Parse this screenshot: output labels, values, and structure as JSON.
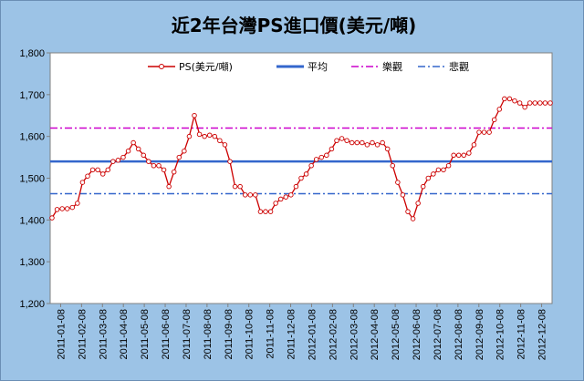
{
  "chart_data": {
    "type": "line",
    "title": "近2年台灣PS進口價(美元/噸)",
    "ylim": [
      1200,
      1800
    ],
    "y_ticks": [
      "1,200",
      "1,300",
      "1,400",
      "1,500",
      "1,600",
      "1,700",
      "1,800"
    ],
    "x_ticks": [
      "2011-01-08",
      "2011-02-08",
      "2011-03-08",
      "2011-04-08",
      "2011-05-08",
      "2011-06-08",
      "2011-07-08",
      "2011-08-08",
      "2011-09-08",
      "2011-10-08",
      "2011-11-08",
      "2011-12-08",
      "2012-01-08",
      "2012-02-08",
      "2012-03-08",
      "2012-04-08",
      "2012-05-08",
      "2012-06-08",
      "2012-07-08",
      "2012-08-08",
      "2012-09-08",
      "2012-10-08",
      "2012-11-08",
      "2012-12-08"
    ],
    "legend": {
      "series": "PS(美元/噸)",
      "average": "平均",
      "optimistic": "樂觀",
      "pessimistic": "悲觀"
    },
    "reference_lines": {
      "average": 1540,
      "optimistic": 1620,
      "pessimistic": 1463
    },
    "grid": false,
    "legend_position": "top",
    "colors": {
      "series": "#cc0000",
      "average": "#3366cc",
      "optimistic": "#cc00cc",
      "pessimistic": "#3366cc",
      "background": "#9cc3e6"
    },
    "series": [
      {
        "name": "PS(美元/噸)",
        "values": [
          1405,
          1425,
          1427,
          1427,
          1430,
          1440,
          1490,
          1505,
          1520,
          1520,
          1510,
          1520,
          1540,
          1543,
          1550,
          1565,
          1585,
          1570,
          1555,
          1540,
          1530,
          1530,
          1520,
          1480,
          1515,
          1550,
          1565,
          1600,
          1650,
          1605,
          1600,
          1603,
          1600,
          1590,
          1580,
          1540,
          1480,
          1480,
          1460,
          1460,
          1460,
          1420,
          1420,
          1420,
          1440,
          1450,
          1455,
          1460,
          1480,
          1500,
          1510,
          1530,
          1545,
          1550,
          1555,
          1570,
          1590,
          1595,
          1590,
          1585,
          1585,
          1585,
          1580,
          1585,
          1580,
          1585,
          1570,
          1530,
          1490,
          1460,
          1420,
          1403,
          1440,
          1480,
          1500,
          1510,
          1520,
          1520,
          1530,
          1555,
          1555,
          1555,
          1560,
          1580,
          1610,
          1610,
          1610,
          1640,
          1665,
          1690,
          1690,
          1685,
          1680,
          1670,
          1680,
          1680,
          1680,
          1680,
          1680
        ]
      }
    ]
  }
}
